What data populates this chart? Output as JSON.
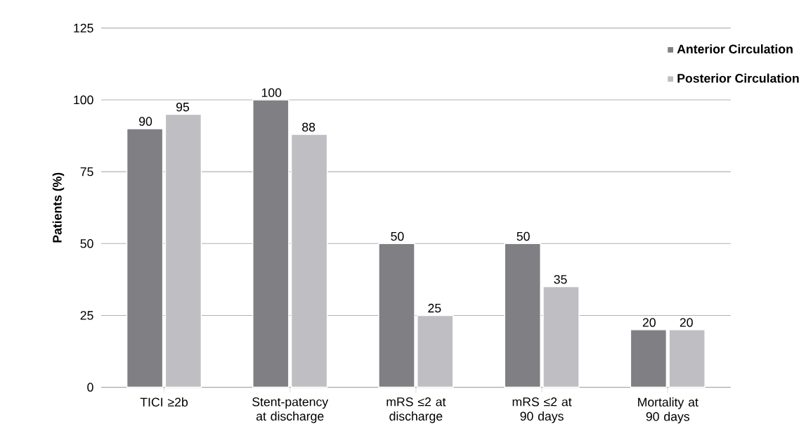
{
  "chart_data": {
    "type": "bar",
    "ylabel": "Patients (%)",
    "categories": [
      "TICI ≥2b",
      "Stent-patency at discharge",
      "mRS ≤2 at discharge",
      "mRS ≤2 at 90 days",
      "Mortality at 90 days"
    ],
    "series": [
      {
        "name": "Anterior Circulation",
        "color": "#7f7f84",
        "values": [
          90,
          100,
          50,
          50,
          20
        ]
      },
      {
        "name": "Posterior Circulation",
        "color": "#bfbfc3",
        "values": [
          95,
          88,
          25,
          35,
          20
        ]
      }
    ],
    "ylim": [
      0,
      125
    ],
    "yticks": [
      0,
      25,
      50,
      75,
      100,
      125
    ],
    "grid": "y",
    "legend": "top right",
    "data_labels": true
  }
}
